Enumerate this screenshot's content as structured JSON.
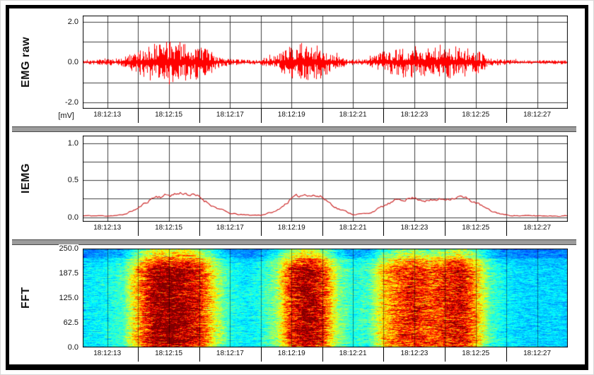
{
  "window": {
    "background": "#ffffff",
    "frame_border_color": "#000000",
    "separator_color": "#9c9c9c"
  },
  "time_axis": {
    "start": 12.2,
    "end": 28.0,
    "gridline_seconds": [
      13,
      14,
      15,
      16,
      17,
      18,
      19,
      20,
      21,
      22,
      23,
      24,
      25,
      26,
      27
    ],
    "strip_line_seconds": [
      14,
      16,
      18,
      20,
      22,
      24,
      26
    ],
    "ticks": [
      {
        "label": "18:12:13",
        "second": 13
      },
      {
        "label": "18:12:15",
        "second": 15
      },
      {
        "label": "18:12:17",
        "second": 17
      },
      {
        "label": "18:12:19",
        "second": 19
      },
      {
        "label": "18:12:21",
        "second": 21
      },
      {
        "label": "18:12:23",
        "second": 23
      },
      {
        "label": "18:12:25",
        "second": 25
      },
      {
        "label": "18:12:27",
        "second": 27
      }
    ]
  },
  "chart_data": [
    {
      "id": "emg_raw",
      "type": "line",
      "title": "EMG raw",
      "unit": "[mV]",
      "color": "#ff0000",
      "ylim": [
        -2.3,
        2.3
      ],
      "yticks": [
        {
          "label": "2.0",
          "value": 2
        },
        {
          "label": "0.0",
          "value": 0
        },
        {
          "label": "-2.0",
          "value": -2
        }
      ],
      "hgrid": [
        2,
        1,
        0,
        -1,
        -2
      ],
      "t": [
        12,
        12.5,
        13,
        13.5,
        14,
        14.5,
        15,
        15.5,
        16,
        16.5,
        17,
        17.5,
        18,
        18.5,
        19,
        19.5,
        20,
        20.5,
        21,
        21.5,
        22,
        22.5,
        23,
        23.5,
        24,
        24.5,
        25,
        25.5,
        26,
        26.5,
        27,
        27.5,
        28
      ],
      "envelope_mv": [
        0.12,
        0.12,
        0.14,
        0.22,
        0.6,
        1.0,
        1.1,
        0.95,
        0.85,
        0.45,
        0.16,
        0.12,
        0.15,
        0.35,
        0.85,
        1.0,
        0.8,
        0.3,
        0.15,
        0.2,
        0.55,
        0.75,
        0.8,
        0.7,
        0.75,
        0.9,
        0.6,
        0.2,
        0.12,
        0.1,
        0.1,
        0.1,
        0.1
      ]
    },
    {
      "id": "iemg",
      "type": "line",
      "title": "IEMG",
      "color": "#cc2a2a",
      "ylim": [
        -0.06,
        1.1
      ],
      "yticks": [
        {
          "label": "1.0",
          "value": 1
        },
        {
          "label": "0.5",
          "value": 0.5
        },
        {
          "label": "0.0",
          "value": 0
        }
      ],
      "hgrid": [
        1,
        0.75,
        0.5,
        0.25,
        0
      ],
      "t": [
        12,
        12.5,
        13,
        13.5,
        14,
        14.5,
        15,
        15.5,
        16,
        16.5,
        17,
        17.5,
        18,
        18.5,
        19,
        19.5,
        20,
        20.5,
        21,
        21.5,
        22,
        22.5,
        23,
        23.5,
        24,
        24.5,
        25,
        25.5,
        26,
        26.5,
        27,
        27.5,
        28
      ],
      "values": [
        0.02,
        0.02,
        0.02,
        0.03,
        0.12,
        0.27,
        0.3,
        0.33,
        0.27,
        0.14,
        0.05,
        0.03,
        0.03,
        0.08,
        0.25,
        0.32,
        0.27,
        0.12,
        0.04,
        0.05,
        0.15,
        0.24,
        0.26,
        0.22,
        0.25,
        0.28,
        0.2,
        0.08,
        0.03,
        0.02,
        0.02,
        0.02,
        0.02
      ]
    },
    {
      "id": "fft",
      "type": "heatmap",
      "title": "FFT",
      "colormap": "jet",
      "ylim": [
        0,
        250
      ],
      "yticks": [
        {
          "label": "250.0",
          "value": 250
        },
        {
          "label": "187.5",
          "value": 187.5
        },
        {
          "label": "125.0",
          "value": 125
        },
        {
          "label": "62.5",
          "value": 62.5
        },
        {
          "label": "0.0",
          "value": 0
        }
      ],
      "t": [
        12,
        12.5,
        13,
        13.5,
        14,
        14.5,
        15,
        15.5,
        16,
        16.5,
        17,
        17.5,
        18,
        18.5,
        19,
        19.5,
        20,
        20.5,
        21,
        21.5,
        22,
        22.5,
        23,
        23.5,
        24,
        24.5,
        25,
        25.5,
        26,
        26.5,
        27,
        27.5,
        28
      ],
      "intensity": [
        0.15,
        0.15,
        0.18,
        0.25,
        0.6,
        0.92,
        1.0,
        0.92,
        0.8,
        0.45,
        0.2,
        0.15,
        0.2,
        0.35,
        0.8,
        0.95,
        0.8,
        0.35,
        0.2,
        0.25,
        0.55,
        0.72,
        0.8,
        0.7,
        0.78,
        0.85,
        0.6,
        0.25,
        0.15,
        0.12,
        0.12,
        0.12,
        0.12
      ]
    }
  ]
}
